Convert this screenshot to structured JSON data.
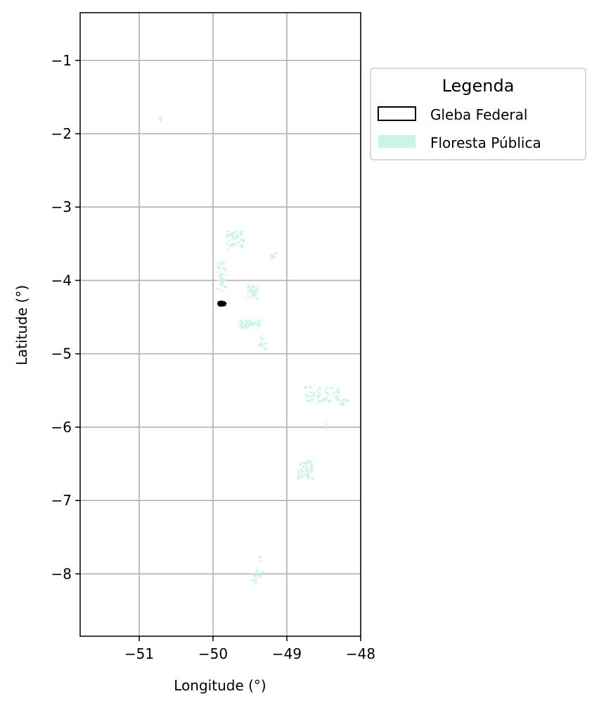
{
  "map": {
    "xlabel": "Longitude (°)",
    "ylabel": "Latitude (°)",
    "x_range": [
      -51.8,
      -48.0
    ],
    "y_range": [
      -8.85,
      -0.35
    ],
    "x_ticks": [
      {
        "value": -51,
        "label": "−51"
      },
      {
        "value": -50,
        "label": "−50"
      },
      {
        "value": -49,
        "label": "−49"
      },
      {
        "value": -48,
        "label": "−48"
      }
    ],
    "y_ticks": [
      {
        "value": -1,
        "label": "−1"
      },
      {
        "value": -2,
        "label": "−2"
      },
      {
        "value": -3,
        "label": "−3"
      },
      {
        "value": -4,
        "label": "−4"
      },
      {
        "value": -5,
        "label": "−5"
      },
      {
        "value": -6,
        "label": "−6"
      },
      {
        "value": -7,
        "label": "−7"
      },
      {
        "value": -8,
        "label": "−8"
      }
    ],
    "grid": true
  },
  "legend": {
    "title": "Legenda",
    "placement": "outside-upper-right",
    "items": [
      {
        "label": "Gleba Federal",
        "type": "outline",
        "edge_color": "#000000",
        "face_color": "#ffffff"
      },
      {
        "label": "Floresta Pública",
        "type": "fill",
        "face_color": "#c8f5e8"
      }
    ]
  },
  "layers": {
    "floresta_publica": {
      "color": "#c8f5e8",
      "clusters": [
        {
          "lon": -50.72,
          "lat": -1.79,
          "spread_lon": 0.02,
          "spread_lat": 0.04,
          "count": 5
        },
        {
          "lon": -49.7,
          "lat": -3.45,
          "spread_lon": 0.12,
          "spread_lat": 0.12,
          "count": 40
        },
        {
          "lon": -49.18,
          "lat": -3.68,
          "spread_lon": 0.05,
          "spread_lat": 0.05,
          "count": 10
        },
        {
          "lon": -49.88,
          "lat": -3.95,
          "spread_lon": 0.06,
          "spread_lat": 0.2,
          "count": 45
        },
        {
          "lon": -49.46,
          "lat": -4.15,
          "spread_lon": 0.08,
          "spread_lat": 0.1,
          "count": 30
        },
        {
          "lon": -49.52,
          "lat": -4.6,
          "spread_lon": 0.15,
          "spread_lat": 0.06,
          "count": 40
        },
        {
          "lon": -49.33,
          "lat": -4.85,
          "spread_lon": 0.05,
          "spread_lat": 0.1,
          "count": 10
        },
        {
          "lon": -48.55,
          "lat": -5.55,
          "spread_lon": 0.25,
          "spread_lat": 0.1,
          "count": 55
        },
        {
          "lon": -48.22,
          "lat": -5.65,
          "spread_lon": 0.05,
          "spread_lat": 0.05,
          "count": 10
        },
        {
          "lon": -48.45,
          "lat": -6.0,
          "spread_lon": 0.03,
          "spread_lat": 0.05,
          "count": 6
        },
        {
          "lon": -48.75,
          "lat": -6.58,
          "spread_lon": 0.1,
          "spread_lat": 0.12,
          "count": 45
        },
        {
          "lon": -49.4,
          "lat": -8.05,
          "spread_lon": 0.08,
          "spread_lat": 0.1,
          "count": 20
        },
        {
          "lon": -49.35,
          "lat": -7.8,
          "spread_lon": 0.02,
          "spread_lat": 0.03,
          "count": 3
        }
      ]
    },
    "gleba_federal": {
      "color": "#000000",
      "center": {
        "lon": -49.88,
        "lat": -4.32
      }
    }
  }
}
